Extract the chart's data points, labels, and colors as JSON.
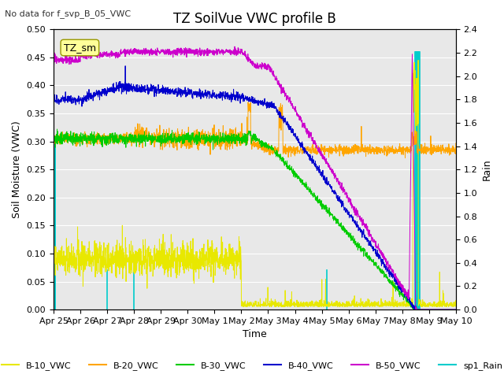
{
  "title": "TZ SoilVue VWC profile B",
  "subtitle": "No data for f_svp_B_05_VWC",
  "xlabel": "Time",
  "ylabel_left": "Soil Moisture (VWC)",
  "ylabel_right": "Rain",
  "ylim_left": [
    0.0,
    0.5
  ],
  "ylim_right": [
    0.0,
    2.4
  ],
  "colors": {
    "B10": "#e8e800",
    "B20": "#ffa500",
    "B30": "#00cc00",
    "B40": "#0000cc",
    "B50": "#cc00cc",
    "Rain": "#00cccc"
  },
  "legend_labels": [
    "B-10_VWC",
    "B-20_VWC",
    "B-30_VWC",
    "B-40_VWC",
    "B-50_VWC",
    "sp1_Rain"
  ],
  "annotation_box": "TZ_sm",
  "annotation_box_color": "#ffff99",
  "background_color": "#e8e8e8",
  "grid_color": "#ffffff",
  "tick_label_size": 8,
  "title_fontsize": 12,
  "figsize": [
    6.4,
    4.8
  ],
  "dpi": 100
}
